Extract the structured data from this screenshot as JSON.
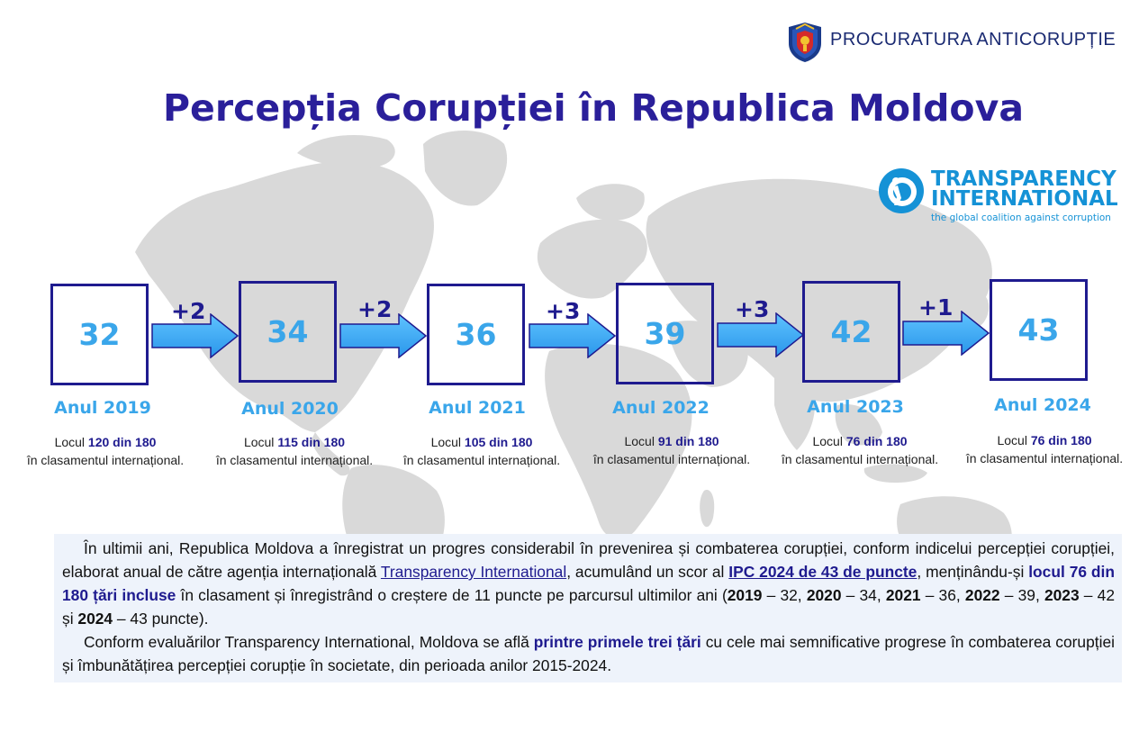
{
  "header": {
    "org_name": "PROCURATURA ANTICORUPȚIE"
  },
  "title": "Percepția Corupției în Republica Moldova",
  "ti_logo": {
    "name_line1": "TRANSPARENCY",
    "name_line2": "INTERNATIONAL",
    "tagline": "the global coalition against corruption"
  },
  "colors": {
    "title": "#2a1f9a",
    "accent_blue": "#3aa6ea",
    "navy": "#1f1b8f",
    "map_gray": "#d9d9d9"
  },
  "timeline": [
    {
      "score": "32",
      "year_label": "Anul 2019",
      "rank_prefix": "Locul ",
      "rank_value": "120 din 180",
      "rank_suffix": "în clasamentul internațional."
    },
    {
      "score": "34",
      "year_label": "Anul 2020",
      "rank_prefix": "Locul ",
      "rank_value": "115 din 180",
      "rank_suffix": "în clasamentul internațional."
    },
    {
      "score": "36",
      "year_label": "Anul 2021",
      "rank_prefix": "Locul ",
      "rank_value": "105 din 180",
      "rank_suffix": "în clasamentul internațional."
    },
    {
      "score": "39",
      "year_label": "Anul 2022",
      "rank_prefix": "Locul ",
      "rank_value": "91 din 180",
      "rank_suffix": "în clasamentul internațional."
    },
    {
      "score": "42",
      "year_label": "Anul 2023",
      "rank_prefix": "Locul ",
      "rank_value": "76 din 180",
      "rank_suffix": "în clasamentul internațional."
    },
    {
      "score": "43",
      "year_label": "Anul 2024",
      "rank_prefix": "Locul ",
      "rank_value": "76 din 180",
      "rank_suffix": "în clasamentul internațional."
    }
  ],
  "deltas": [
    "+2",
    "+2",
    "+3",
    "+3",
    "+1"
  ],
  "paragraph1": {
    "t1": "În ultimii ani, Republica Moldova a înregistrat un progres considerabil în prevenirea și combaterea corupției, conform indicelui percepției corupției, elaborat anual de către agenția internațională ",
    "link": "Transparency International",
    "t2": ", acumulând un scor al ",
    "ipc": "IPC 2024 de 43 de puncte",
    "t3": ", menținându-și ",
    "locul": "locul 76 din 180 țări incluse",
    "t4": " în clasament și înregistrând o creștere de 11 puncte pe parcursul ultimilor ani (",
    "y2019": "2019",
    "s2019": " – 32, ",
    "y2020": "2020",
    "s2020": " – 34, ",
    "y2021": "2021",
    "s2021": " – 36,  ",
    "y2022": "2022",
    "s2022": " – 39, ",
    "y2023": "2023",
    "s2023": " – 42 și ",
    "y2024": "2024",
    "s2024": " – 43 puncte)."
  },
  "paragraph2": {
    "t1": "Conform evaluărilor Transparency International, Moldova se află ",
    "highlight": "printre primele trei țări",
    "t2": " cu cele mai semnificative progrese în combaterea corupției și îmbunătățirea percepției corupție în societate, din perioada anilor 2015-2024."
  }
}
